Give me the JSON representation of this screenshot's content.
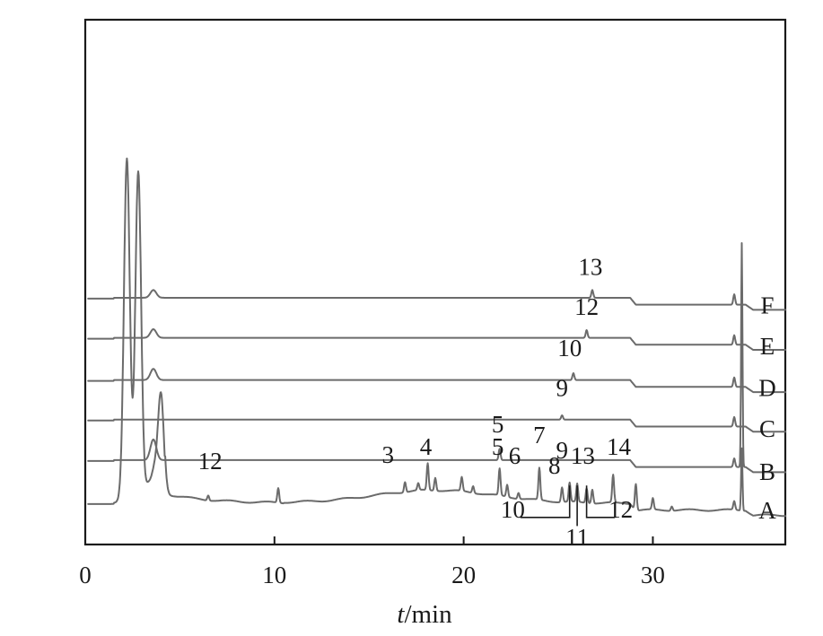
{
  "chart_data": {
    "type": "line",
    "xlabel_italic": "t",
    "xlabel_rest": "/min",
    "xlim": [
      0,
      37
    ],
    "x_ticks": [
      "0",
      "10",
      "20",
      "30"
    ],
    "series": [
      {
        "name": "A",
        "baseline": 0.96,
        "peaks": [
          [
            1.8,
            0.04
          ],
          [
            2.2,
            8.0
          ],
          [
            2.8,
            7.7
          ],
          [
            3.3,
            0.38
          ],
          [
            3.6,
            0.36
          ],
          [
            3.7,
            0.4
          ],
          [
            4.0,
            2.5
          ],
          [
            6.5,
            0.12
          ],
          [
            10.2,
            0.34
          ],
          [
            16.9,
            0.24
          ],
          [
            17.6,
            0.16
          ],
          [
            18.1,
            0.62
          ],
          [
            18.5,
            0.3
          ],
          [
            19.9,
            0.32
          ],
          [
            20.5,
            0.16
          ],
          [
            21.9,
            0.62
          ],
          [
            22.3,
            0.28
          ],
          [
            22.9,
            0.14
          ],
          [
            24.0,
            0.74
          ],
          [
            25.2,
            0.34
          ],
          [
            25.6,
            0.44
          ],
          [
            26.0,
            0.42
          ],
          [
            26.5,
            0.34
          ],
          [
            26.8,
            0.32
          ],
          [
            27.9,
            0.64
          ],
          [
            29.1,
            0.62
          ],
          [
            30.0,
            0.26
          ],
          [
            31.0,
            0.1
          ],
          [
            34.3,
            0.2
          ],
          [
            34.7,
            1.45
          ]
        ]
      },
      {
        "name": "B",
        "baseline": 1.96,
        "peaks": [
          [
            3.6,
            0.48
          ],
          [
            21.9,
            0.26
          ],
          [
            34.3,
            0.2
          ],
          [
            34.7,
            5.2
          ]
        ]
      },
      {
        "name": "C",
        "baseline": 2.9,
        "peaks": [
          [
            25.2,
            0.1
          ],
          [
            34.3,
            0.22
          ]
        ]
      },
      {
        "name": "D",
        "baseline": 3.82,
        "peaks": [
          [
            3.6,
            0.26
          ],
          [
            25.8,
            0.16
          ],
          [
            34.3,
            0.22
          ]
        ]
      },
      {
        "name": "E",
        "baseline": 4.8,
        "peaks": [
          [
            3.6,
            0.2
          ],
          [
            26.5,
            0.18
          ],
          [
            34.3,
            0.22
          ]
        ]
      },
      {
        "name": "F",
        "baseline": 5.73,
        "peaks": [
          [
            3.6,
            0.18
          ],
          [
            26.8,
            0.18
          ],
          [
            34.3,
            0.24
          ]
        ]
      }
    ],
    "peak_labels": [
      {
        "text": "12",
        "x": 6.6,
        "y": 1.75
      },
      {
        "text": "3",
        "x": 16.0,
        "y": 1.9
      },
      {
        "text": "4",
        "x": 18.0,
        "y": 2.08
      },
      {
        "text": "5",
        "x": 21.8,
        "y": 2.08
      },
      {
        "text": "6",
        "x": 22.7,
        "y": 1.88
      },
      {
        "text": "7",
        "x": 24.0,
        "y": 2.35
      },
      {
        "text": "8",
        "x": 24.8,
        "y": 1.65
      },
      {
        "text": "9",
        "x": 25.2,
        "y": 2.0
      },
      {
        "text": "13",
        "x": 26.3,
        "y": 1.88
      },
      {
        "text": "14",
        "x": 28.2,
        "y": 2.08
      },
      {
        "text": "10",
        "x": 22.6,
        "y": 0.62
      },
      {
        "text": "11",
        "x": 26.0,
        "y": -0.02
      },
      {
        "text": "12",
        "x": 28.3,
        "y": 0.62
      },
      {
        "text": "5",
        "x": 21.8,
        "y": 2.6
      },
      {
        "text": "9",
        "x": 25.2,
        "y": 3.45
      },
      {
        "text": "10",
        "x": 25.6,
        "y": 4.38
      },
      {
        "text": "12",
        "x": 26.5,
        "y": 5.33
      },
      {
        "text": "13",
        "x": 26.7,
        "y": 6.26
      }
    ],
    "leader_lines": [
      {
        "points": [
          [
            23.0,
            0.63
          ],
          [
            25.6,
            0.63
          ],
          [
            25.6,
            1.37
          ]
        ]
      },
      {
        "points": [
          [
            26.0,
            0.43
          ],
          [
            26.0,
            1.37
          ]
        ]
      },
      {
        "points": [
          [
            26.5,
            1.37
          ],
          [
            26.5,
            0.63
          ],
          [
            28.0,
            0.63
          ]
        ]
      }
    ],
    "curve_labels": [
      {
        "text": "A",
        "y": 0.6
      },
      {
        "text": "B",
        "y": 1.5
      },
      {
        "text": "C",
        "y": 2.5
      },
      {
        "text": "D",
        "y": 3.45
      },
      {
        "text": "E",
        "y": 4.42
      },
      {
        "text": "F",
        "y": 5.36
      }
    ]
  }
}
